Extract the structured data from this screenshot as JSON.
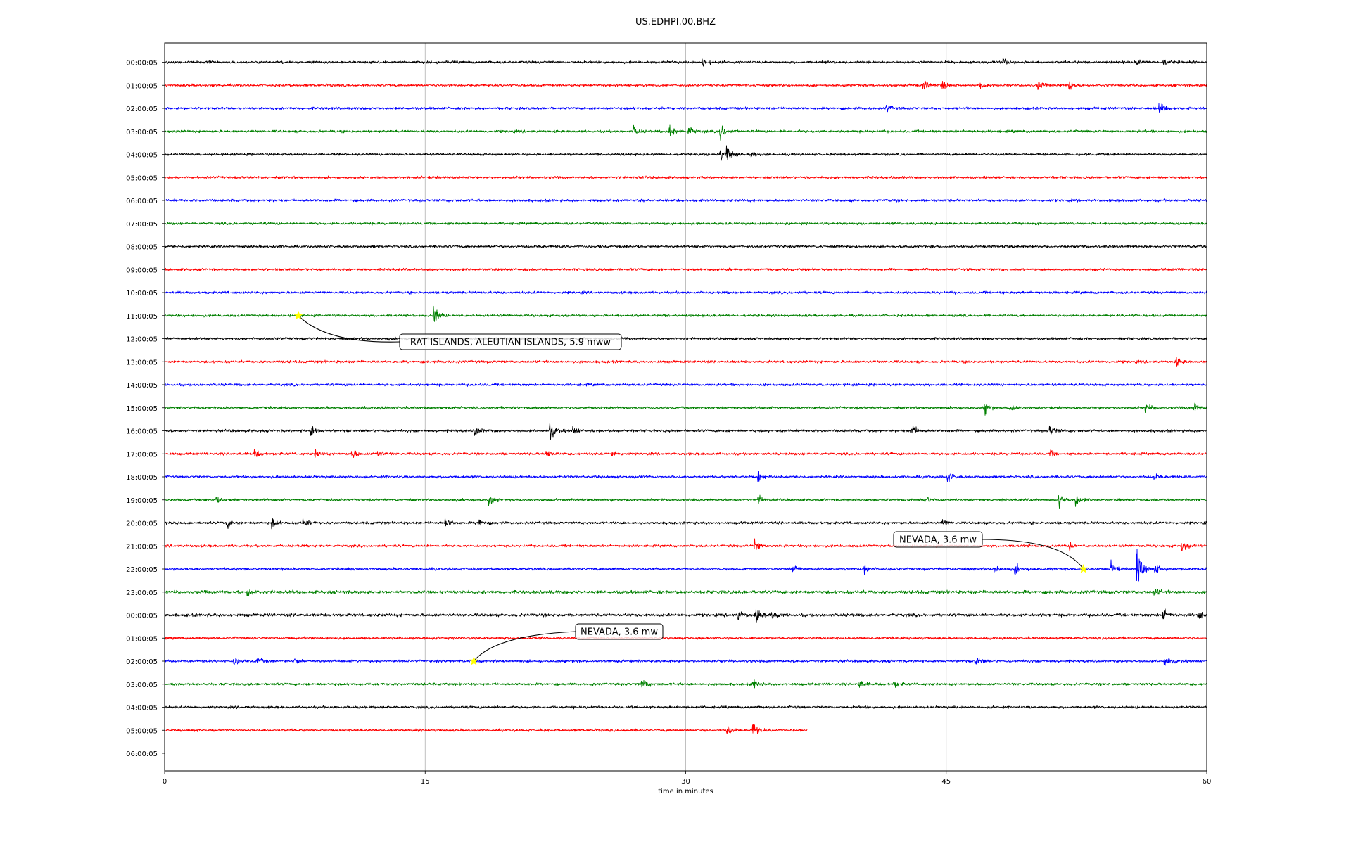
{
  "chart_data": {
    "type": "line",
    "title": "US.EDHPI.00.BHZ",
    "xlabel": "time in minutes",
    "ylabel": "",
    "xlim": [
      0,
      60
    ],
    "x_ticks": [
      "0",
      "15",
      "30",
      "45",
      "60"
    ],
    "grid": "vertical lines at 15, 30, 45",
    "row_labels": [
      "00:00:05",
      "01:00:05",
      "02:00:05",
      "03:00:05",
      "04:00:05",
      "05:00:05",
      "06:00:05",
      "07:00:05",
      "08:00:05",
      "09:00:05",
      "10:00:05",
      "11:00:05",
      "12:00:05",
      "13:00:05",
      "14:00:05",
      "15:00:05",
      "16:00:05",
      "17:00:05",
      "18:00:05",
      "19:00:05",
      "20:00:05",
      "21:00:05",
      "22:00:05",
      "23:00:05",
      "00:00:05",
      "01:00:05",
      "02:00:05",
      "03:00:05",
      "04:00:05",
      "05:00:05",
      "06:00:05"
    ],
    "trace_colors": [
      "#000000",
      "#ff0000",
      "#0000ff",
      "#008000"
    ],
    "last_trace_end_minute": 37,
    "traces": [
      {
        "row": 0,
        "noise": 2.5,
        "events": [
          {
            "t": 31.0,
            "amp": 10
          },
          {
            "t": 48.3,
            "amp": 8
          },
          {
            "t": 56.0,
            "amp": 6
          },
          {
            "t": 57.5,
            "amp": 8
          }
        ]
      },
      {
        "row": 1,
        "noise": 2.5,
        "events": [
          {
            "t": 43.7,
            "amp": 10
          },
          {
            "t": 44.8,
            "amp": 8
          },
          {
            "t": 47.0,
            "amp": 8
          },
          {
            "t": 50.3,
            "amp": 8
          },
          {
            "t": 52.1,
            "amp": 12
          }
        ]
      },
      {
        "row": 2,
        "noise": 2.5,
        "events": [
          {
            "t": 41.6,
            "amp": 7
          },
          {
            "t": 57.3,
            "amp": 12
          }
        ]
      },
      {
        "row": 3,
        "noise": 2.5,
        "events": [
          {
            "t": 27.0,
            "amp": 8
          },
          {
            "t": 29.1,
            "amp": 14
          },
          {
            "t": 30.2,
            "amp": 10
          },
          {
            "t": 32.0,
            "amp": 16
          }
        ]
      },
      {
        "row": 4,
        "noise": 2.5,
        "events": [
          {
            "t": 32.0,
            "amp": 12
          },
          {
            "t": 32.4,
            "amp": 18
          },
          {
            "t": 33.8,
            "amp": 8
          }
        ]
      },
      {
        "row": 5,
        "noise": 2.5,
        "events": []
      },
      {
        "row": 6,
        "noise": 2.5,
        "events": []
      },
      {
        "row": 7,
        "noise": 2.5,
        "events": []
      },
      {
        "row": 8,
        "noise": 2.5,
        "events": []
      },
      {
        "row": 9,
        "noise": 2.5,
        "events": []
      },
      {
        "row": 10,
        "noise": 2.5,
        "events": []
      },
      {
        "row": 11,
        "noise": 2.5,
        "events": [
          {
            "t": 15.5,
            "amp": 22
          }
        ]
      },
      {
        "row": 12,
        "noise": 2.5,
        "events": []
      },
      {
        "row": 13,
        "noise": 2.5,
        "events": [
          {
            "t": 58.2,
            "amp": 10
          }
        ]
      },
      {
        "row": 14,
        "noise": 2.5,
        "events": []
      },
      {
        "row": 15,
        "noise": 2.5,
        "events": [
          {
            "t": 47.2,
            "amp": 14
          },
          {
            "t": 48.7,
            "amp": 10
          },
          {
            "t": 56.5,
            "amp": 8
          },
          {
            "t": 59.3,
            "amp": 10
          }
        ]
      },
      {
        "row": 16,
        "noise": 2.5,
        "events": [
          {
            "t": 8.4,
            "amp": 14
          },
          {
            "t": 17.9,
            "amp": 10
          },
          {
            "t": 22.2,
            "amp": 18
          },
          {
            "t": 23.5,
            "amp": 8
          },
          {
            "t": 43.0,
            "amp": 16
          },
          {
            "t": 51.0,
            "amp": 10
          }
        ]
      },
      {
        "row": 17,
        "noise": 2.5,
        "events": [
          {
            "t": 5.2,
            "amp": 8
          },
          {
            "t": 8.7,
            "amp": 8
          },
          {
            "t": 10.8,
            "amp": 10
          },
          {
            "t": 12.3,
            "amp": 8
          },
          {
            "t": 22.0,
            "amp": 8
          },
          {
            "t": 25.8,
            "amp": 6
          },
          {
            "t": 51.0,
            "amp": 6
          }
        ]
      },
      {
        "row": 18,
        "noise": 2.5,
        "events": [
          {
            "t": 34.2,
            "amp": 10
          },
          {
            "t": 45.1,
            "amp": 10
          },
          {
            "t": 57.0,
            "amp": 6
          }
        ]
      },
      {
        "row": 19,
        "noise": 2.5,
        "events": [
          {
            "t": 3.0,
            "amp": 6
          },
          {
            "t": 18.7,
            "amp": 12
          },
          {
            "t": 34.2,
            "amp": 8
          },
          {
            "t": 43.8,
            "amp": 8
          },
          {
            "t": 51.5,
            "amp": 14
          },
          {
            "t": 52.5,
            "amp": 12
          }
        ]
      },
      {
        "row": 20,
        "noise": 2.5,
        "events": [
          {
            "t": 3.6,
            "amp": 10
          },
          {
            "t": 6.2,
            "amp": 10
          },
          {
            "t": 8.0,
            "amp": 8
          },
          {
            "t": 16.2,
            "amp": 10
          },
          {
            "t": 18.1,
            "amp": 10
          },
          {
            "t": 44.8,
            "amp": 6
          }
        ]
      },
      {
        "row": 21,
        "noise": 2.5,
        "events": [
          {
            "t": 34.0,
            "amp": 12
          },
          {
            "t": 52.1,
            "amp": 8
          },
          {
            "t": 58.6,
            "amp": 10
          }
        ]
      },
      {
        "row": 22,
        "noise": 2.5,
        "events": [
          {
            "t": 36.2,
            "amp": 8
          },
          {
            "t": 40.3,
            "amp": 10
          },
          {
            "t": 47.8,
            "amp": 10
          },
          {
            "t": 49.0,
            "amp": 10
          },
          {
            "t": 54.5,
            "amp": 12
          },
          {
            "t": 56.0,
            "amp": 40
          },
          {
            "t": 57.0,
            "amp": 12
          }
        ]
      },
      {
        "row": 23,
        "noise": 3.2,
        "events": [
          {
            "t": 4.8,
            "amp": 10
          },
          {
            "t": 57.0,
            "amp": 8
          }
        ]
      },
      {
        "row": 24,
        "noise": 3.0,
        "events": [
          {
            "t": 33.0,
            "amp": 10
          },
          {
            "t": 34.0,
            "amp": 16
          },
          {
            "t": 35.0,
            "amp": 8
          },
          {
            "t": 57.5,
            "amp": 12
          },
          {
            "t": 59.5,
            "amp": 8
          }
        ]
      },
      {
        "row": 25,
        "noise": 2.5,
        "events": []
      },
      {
        "row": 26,
        "noise": 2.5,
        "events": [
          {
            "t": 4.0,
            "amp": 10
          },
          {
            "t": 5.3,
            "amp": 8
          },
          {
            "t": 7.5,
            "amp": 6
          },
          {
            "t": 46.7,
            "amp": 10
          },
          {
            "t": 57.6,
            "amp": 12
          }
        ]
      },
      {
        "row": 27,
        "noise": 2.5,
        "events": [
          {
            "t": 27.5,
            "amp": 12
          },
          {
            "t": 33.9,
            "amp": 10
          },
          {
            "t": 40.0,
            "amp": 8
          },
          {
            "t": 42.0,
            "amp": 6
          }
        ]
      },
      {
        "row": 28,
        "noise": 2.5,
        "events": []
      },
      {
        "row": 29,
        "noise": 2.5,
        "events": [
          {
            "t": 32.4,
            "amp": 10
          },
          {
            "t": 33.9,
            "amp": 14
          }
        ]
      }
    ],
    "annotations": [
      {
        "text": "RAT ISLANDS, ALEUTIAN ISLANDS, 5.9 mww",
        "row": 11,
        "t": 7.7
      },
      {
        "text": "NEVADA, 3.6 mw",
        "row": 22,
        "t": 52.9
      },
      {
        "text": "NEVADA, 3.6 mw",
        "row": 26,
        "t": 17.8
      }
    ],
    "star_color": "#ffff00"
  }
}
